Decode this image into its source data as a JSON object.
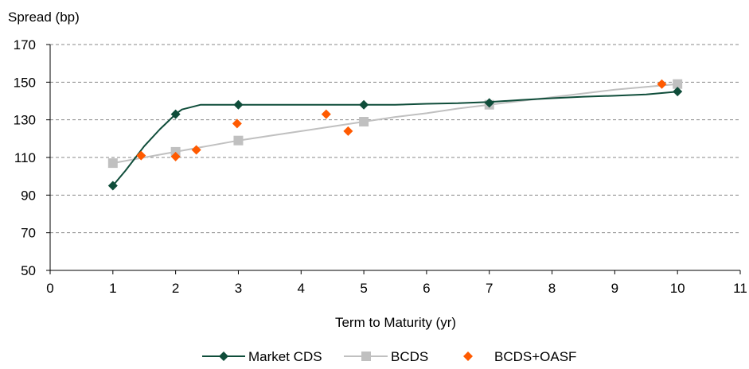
{
  "chart_data": {
    "type": "line",
    "title": "",
    "ylabel": "Spread (bp)",
    "xlabel": "Term to Maturity (yr)",
    "xlim": [
      0,
      11
    ],
    "ylim": [
      50,
      170
    ],
    "xticks": [
      0,
      1,
      2,
      3,
      4,
      5,
      6,
      7,
      8,
      9,
      10,
      11
    ],
    "yticks": [
      50,
      70,
      90,
      110,
      130,
      150,
      170
    ],
    "grid": "horizontal dashed",
    "legend_position": "bottom",
    "series": [
      {
        "name": "Market CDS",
        "style": "line-markers",
        "marker": "diamond",
        "color": "#0f4d3a",
        "markers": [
          {
            "x": 1,
            "y": 95
          },
          {
            "x": 2,
            "y": 133
          },
          {
            "x": 3,
            "y": 138
          },
          {
            "x": 5,
            "y": 138
          },
          {
            "x": 7,
            "y": 139
          },
          {
            "x": 10,
            "y": 145
          }
        ],
        "curve": [
          {
            "x": 1,
            "y": 95
          },
          {
            "x": 1.2,
            "y": 103
          },
          {
            "x": 1.5,
            "y": 116
          },
          {
            "x": 1.75,
            "y": 125
          },
          {
            "x": 2,
            "y": 133
          },
          {
            "x": 2.1,
            "y": 135.5
          },
          {
            "x": 2.4,
            "y": 138
          },
          {
            "x": 3,
            "y": 138
          },
          {
            "x": 4,
            "y": 138
          },
          {
            "x": 5,
            "y": 138
          },
          {
            "x": 5.5,
            "y": 138
          },
          {
            "x": 6,
            "y": 138.5
          },
          {
            "x": 6.5,
            "y": 138.8
          },
          {
            "x": 7,
            "y": 139.5
          },
          {
            "x": 7.5,
            "y": 140.5
          },
          {
            "x": 8,
            "y": 141.5
          },
          {
            "x": 8.5,
            "y": 142.3
          },
          {
            "x": 9,
            "y": 142.8
          },
          {
            "x": 9.5,
            "y": 143.5
          },
          {
            "x": 10,
            "y": 145
          }
        ]
      },
      {
        "name": "BCDS",
        "style": "line-markers",
        "marker": "square",
        "color": "#c0c0c0",
        "markers": [
          {
            "x": 1,
            "y": 107
          },
          {
            "x": 2,
            "y": 113
          },
          {
            "x": 3,
            "y": 119
          },
          {
            "x": 5,
            "y": 129
          },
          {
            "x": 7,
            "y": 138
          },
          {
            "x": 10,
            "y": 149
          }
        ],
        "curve": [
          {
            "x": 1,
            "y": 107
          },
          {
            "x": 1.5,
            "y": 110
          },
          {
            "x": 2,
            "y": 113
          },
          {
            "x": 2.5,
            "y": 116
          },
          {
            "x": 3,
            "y": 119
          },
          {
            "x": 3.5,
            "y": 121.5
          },
          {
            "x": 4,
            "y": 124
          },
          {
            "x": 4.5,
            "y": 126.5
          },
          {
            "x": 5,
            "y": 129
          },
          {
            "x": 5.5,
            "y": 131.5
          },
          {
            "x": 6,
            "y": 133.5
          },
          {
            "x": 6.5,
            "y": 136
          },
          {
            "x": 7,
            "y": 138
          },
          {
            "x": 7.5,
            "y": 140
          },
          {
            "x": 8,
            "y": 142
          },
          {
            "x": 8.5,
            "y": 144
          },
          {
            "x": 9,
            "y": 146
          },
          {
            "x": 9.5,
            "y": 147.5
          },
          {
            "x": 10,
            "y": 149
          }
        ]
      },
      {
        "name": "BCDS+OASF",
        "style": "markers",
        "marker": "diamond",
        "color": "#ff5a00",
        "markers": [
          {
            "x": 1.45,
            "y": 111
          },
          {
            "x": 2,
            "y": 110.5
          },
          {
            "x": 2.33,
            "y": 114
          },
          {
            "x": 2.98,
            "y": 128
          },
          {
            "x": 4.4,
            "y": 133
          },
          {
            "x": 4.75,
            "y": 124
          },
          {
            "x": 9.75,
            "y": 149
          }
        ]
      }
    ]
  }
}
